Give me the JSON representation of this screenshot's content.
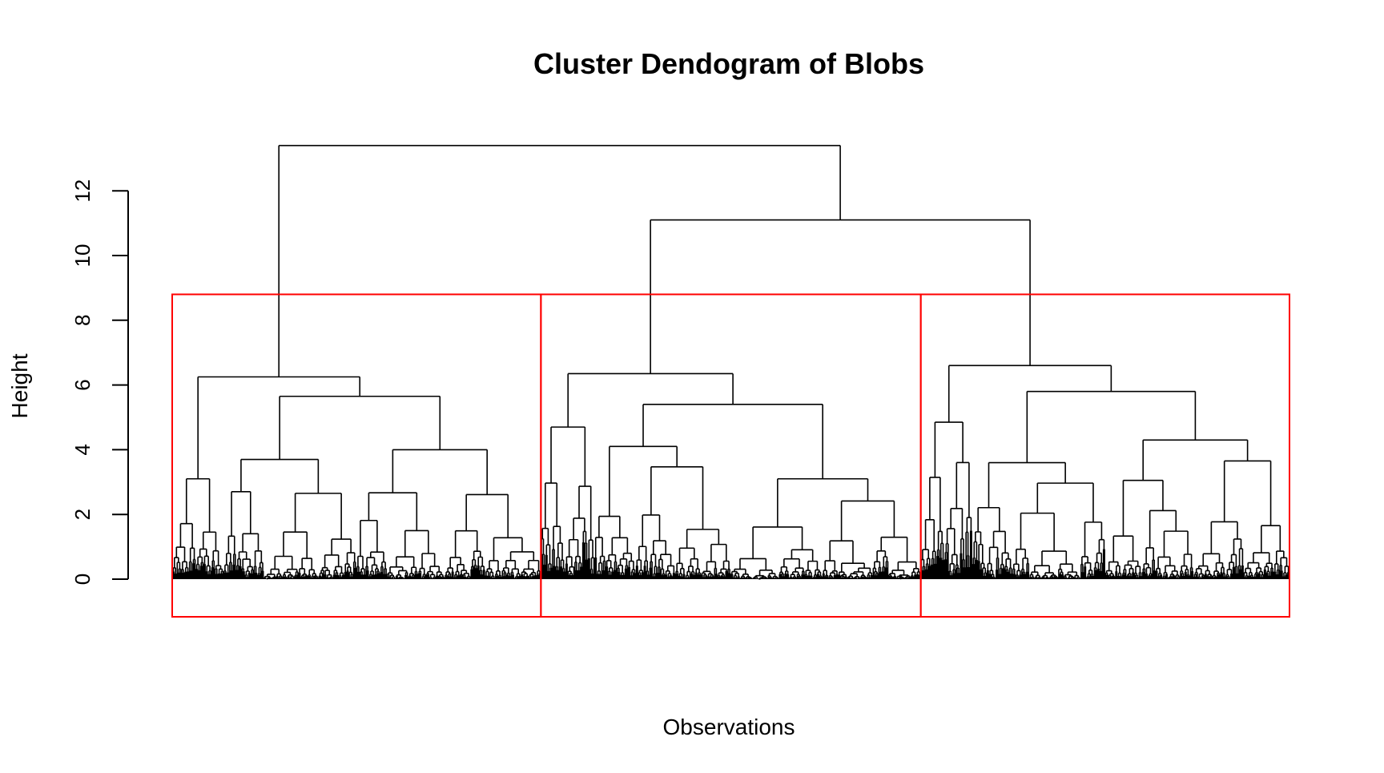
{
  "chart_data": {
    "type": "dendrogram",
    "title": "Cluster Dendogram of Blobs",
    "xlabel": "Observations",
    "ylabel": "Height",
    "ylim": [
      0,
      13.5
    ],
    "yticks": [
      0,
      2,
      4,
      6,
      8,
      10,
      12
    ],
    "root_height": 13.4,
    "cut_height": 8.8,
    "cluster_count": 3,
    "merges": [
      {
        "label": "root",
        "height": 13.4,
        "children": [
          "cluster-1",
          "merge-2-3"
        ]
      },
      {
        "label": "merge-2-3",
        "height": 11.1,
        "children": [
          "cluster-2",
          "cluster-3"
        ]
      }
    ],
    "clusters": [
      {
        "name": "cluster-1",
        "top_height": 6.25,
        "sub_heights": [
          3.1,
          5.65,
          3.7,
          4.0
        ]
      },
      {
        "name": "cluster-2",
        "top_height": 6.35,
        "sub_heights": [
          4.7,
          5.4,
          4.1,
          3.1
        ]
      },
      {
        "name": "cluster-3",
        "top_height": 6.6,
        "sub_heights": [
          4.85,
          5.8,
          3.6,
          4.3
        ]
      }
    ],
    "grid": false,
    "legend": "none",
    "colors": {
      "branch": "#000000",
      "cluster_box": "#ff0000"
    }
  }
}
